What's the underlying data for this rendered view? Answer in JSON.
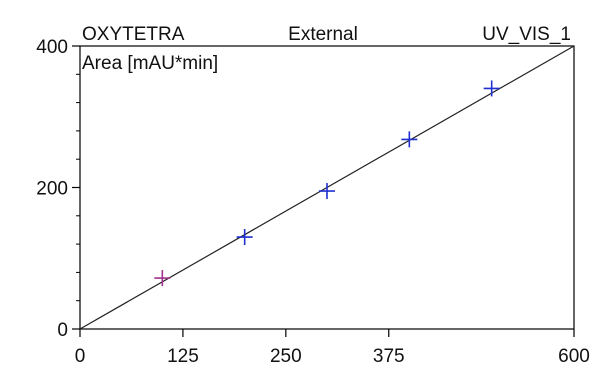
{
  "chart_data": {
    "type": "scatter",
    "header": {
      "left": "OXYTETRA",
      "center": "External",
      "right": "UV_VIS_1"
    },
    "ylabel": "Area  [mAU*min]",
    "xlabel": "",
    "xlim": [
      0,
      600
    ],
    "ylim": [
      0,
      400
    ],
    "x_ticks": [
      0,
      125,
      250,
      375,
      600
    ],
    "x_tick_labels": [
      "0",
      "125",
      "250",
      "375",
      "600"
    ],
    "y_ticks": [
      0,
      200,
      400
    ],
    "y_tick_labels": [
      "0",
      "200",
      "400"
    ],
    "grid": false,
    "points": [
      {
        "x": 100,
        "y": 72,
        "color": "#a0308a"
      },
      {
        "x": 200,
        "y": 130,
        "color": "#1f2fd0"
      },
      {
        "x": 300,
        "y": 195,
        "color": "#1f2fd0"
      },
      {
        "x": 400,
        "y": 268,
        "color": "#1f2fd0"
      },
      {
        "x": 500,
        "y": 340,
        "color": "#1f2fd0"
      }
    ],
    "fit_line": {
      "x": [
        0,
        600
      ],
      "y": [
        0,
        400
      ]
    },
    "colors": {
      "axis": "#000000",
      "fit_line": "#222222"
    }
  }
}
